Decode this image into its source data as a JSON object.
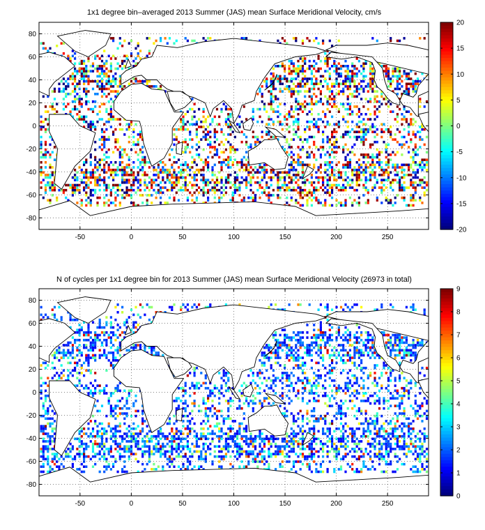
{
  "figure": {
    "panels": [
      {
        "title": "1x1 degree bin–averaged 2013 Summer (JAS) mean Surface Meridional Velocity, cm/s",
        "x_ticks": [
          "-50",
          "0",
          "50",
          "100",
          "150",
          "200",
          "250"
        ],
        "y_ticks": [
          "80",
          "60",
          "40",
          "20",
          "0",
          "-20",
          "-40",
          "-60",
          "-80"
        ],
        "colorbar_ticks": [
          "20",
          "15",
          "10",
          "5",
          "0",
          "-5",
          "-10",
          "-15",
          "-20"
        ],
        "colormap": "jet"
      },
      {
        "title": "N of cycles per 1x1 degree bin for 2013 Summer (JAS) mean Surface Meridional Velocity (26973 in total)",
        "x_ticks": [
          "-50",
          "0",
          "50",
          "100",
          "150",
          "200",
          "250"
        ],
        "y_ticks": [
          "80",
          "60",
          "40",
          "20",
          "0",
          "-20",
          "-40",
          "-60",
          "-80"
        ],
        "colorbar_ticks": [
          "9",
          "8",
          "7",
          "6",
          "5",
          "4",
          "3",
          "2",
          "1",
          "0"
        ],
        "colormap": "jet"
      }
    ]
  },
  "chart_data": [
    {
      "type": "heatmap",
      "title": "1x1 degree bin–averaged 2013 Summer (JAS) mean Surface Meridional Velocity, cm/s",
      "xlim": [
        -90,
        290
      ],
      "ylim": [
        -90,
        90
      ],
      "clim": [
        -20,
        20
      ],
      "grid": true,
      "colorbar": "right"
    },
    {
      "type": "heatmap",
      "title": "N of cycles per 1x1 degree bin for 2013 Summer (JAS) mean Surface Meridional Velocity (26973 in total)",
      "xlim": [
        -90,
        290
      ],
      "ylim": [
        -90,
        90
      ],
      "clim": [
        0,
        9
      ],
      "grid": true,
      "colorbar": "right"
    }
  ]
}
